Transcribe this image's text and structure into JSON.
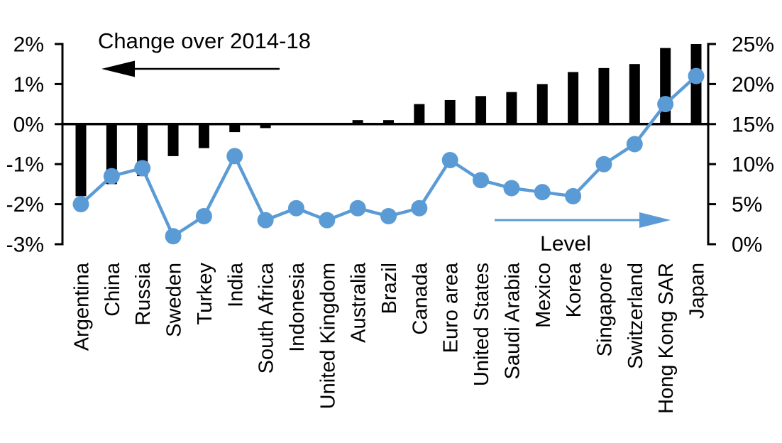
{
  "page": {
    "background": "#ffffff"
  },
  "chart_data": {
    "type": "bar",
    "subtype": "dual-axis bar + line combo",
    "categories": [
      "Argentina",
      "China",
      "Russia",
      "Sweden",
      "Turkey",
      "India",
      "South Africa",
      "Indonesia",
      "United Kingdom",
      "Australia",
      "Brazil",
      "Canada",
      "Euro area",
      "United States",
      "Saudi Arabia",
      "Mexico",
      "Korea",
      "Singapore",
      "Switzerland",
      "Hong Kong SAR",
      "Japan"
    ],
    "series": [
      {
        "name": "Change over 2014-18",
        "type": "bar",
        "axis": "left",
        "color": "#000000",
        "values": [
          -1.8,
          -1.5,
          -1.3,
          -0.8,
          -0.6,
          -0.2,
          -0.1,
          0,
          0,
          0.1,
          0.1,
          0.5,
          0.6,
          0.7,
          0.8,
          1.0,
          1.3,
          1.4,
          1.5,
          1.9,
          2.0
        ]
      },
      {
        "name": "Level",
        "type": "line",
        "axis": "right",
        "color": "#5b9bd5",
        "values": [
          5,
          8.5,
          9.5,
          1,
          3.5,
          11,
          3,
          4.5,
          3,
          4.5,
          3.5,
          4.5,
          10.5,
          8,
          7,
          6.5,
          6,
          10,
          12.5,
          17.5,
          21
        ]
      }
    ],
    "left_axis": {
      "min": -3,
      "max": 2,
      "tick_step": 1,
      "tick_labels": [
        "2%",
        "1%",
        "0%",
        "-1%",
        "-2%",
        "-3%"
      ]
    },
    "right_axis": {
      "min": 0,
      "max": 25,
      "tick_step": 5,
      "tick_labels": [
        "25%",
        "20%",
        "15%",
        "10%",
        "5%",
        "0%"
      ]
    },
    "annotations": {
      "bar_series_label": "Change over 2014-18",
      "line_series_label": "Level",
      "bar_arrow_direction": "left",
      "line_arrow_direction": "right"
    },
    "grid": false,
    "legend_position": "inline-arrows"
  }
}
